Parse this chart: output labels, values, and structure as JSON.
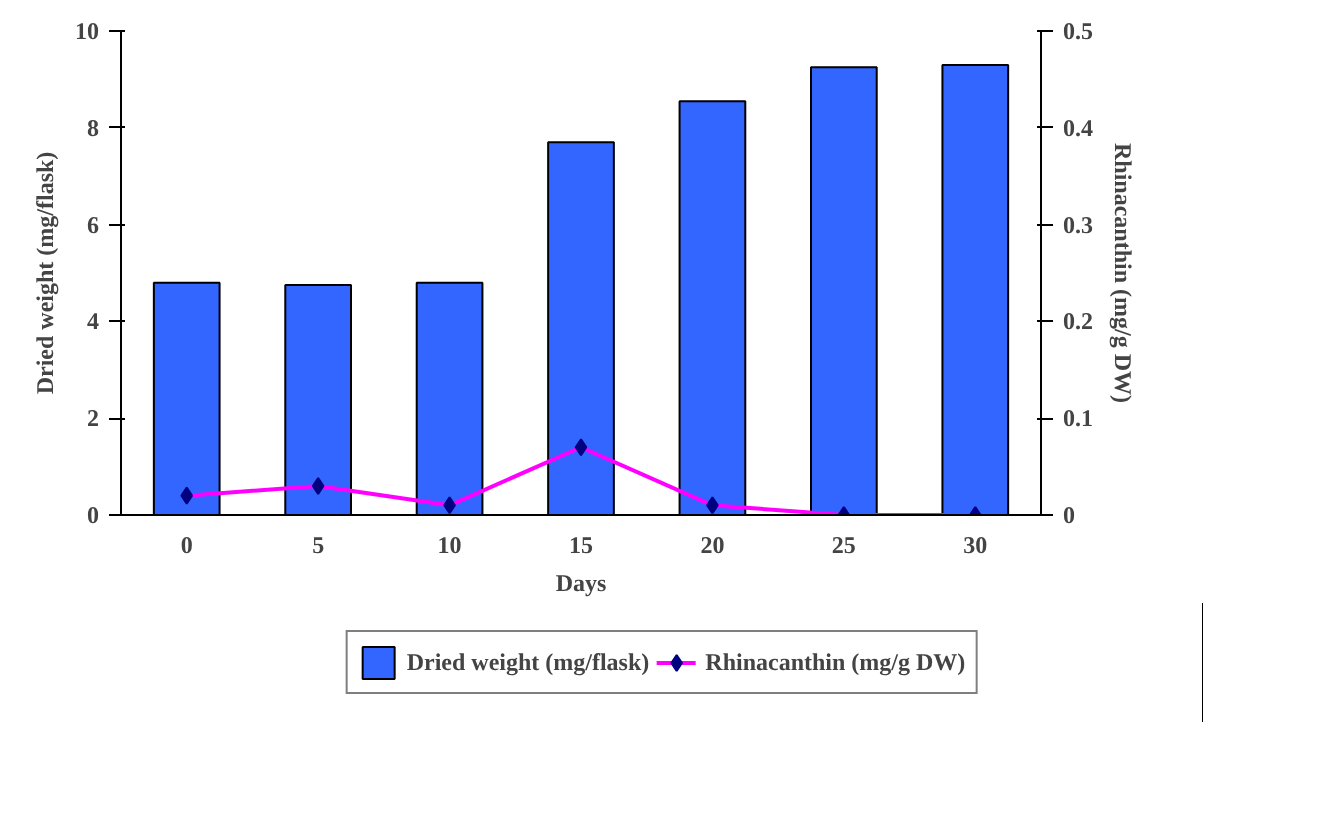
{
  "chart_data": {
    "type": "bar",
    "categories": [
      "0",
      "5",
      "10",
      "15",
      "20",
      "25",
      "30"
    ],
    "xlabel": "Days",
    "ylabel": "Dried weight (mg/flask)",
    "y2label": "Rhinacanthin (mg/g DW)",
    "series": [
      {
        "name": "Dried weight (mg/flask)",
        "color": "#3366ff",
        "values": [
          4.8,
          4.75,
          4.8,
          7.7,
          8.55,
          9.25,
          9.3
        ]
      },
      {
        "name": "Rhinacanthin (mg/g DW)",
        "type": "line",
        "axis": "y2",
        "color": "#ff00ff",
        "marker": "diamond",
        "values": [
          0.02,
          0.03,
          0.01,
          0.07,
          0.01,
          0,
          0
        ]
      }
    ],
    "ylim": [
      0,
      10
    ],
    "yticks": [
      0,
      2,
      4,
      6,
      8,
      10
    ],
    "y2lim": [
      0,
      0.5
    ],
    "y2ticks": [
      0,
      0.1,
      0.2,
      0.3,
      0.4,
      0.5
    ],
    "grid": false,
    "legend": "bottom"
  }
}
